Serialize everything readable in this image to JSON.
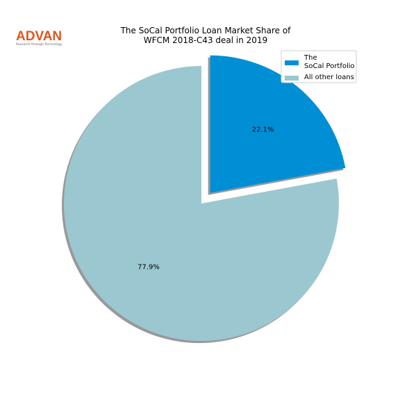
{
  "logo": {
    "name": "ADVAN",
    "tagline": "Research through Technology"
  },
  "chart_data": {
    "type": "pie",
    "title": "The SoCal Portfolio Loan Market Share of\nWFCM 2018-C43 deal in 2019",
    "categories": [
      "The\nSoCal Portfolio",
      "All other loans"
    ],
    "values": [
      22.1,
      77.9
    ],
    "value_labels": [
      "22.1%",
      "77.9%"
    ],
    "colors": [
      "#008fd5",
      "#9bc7d0"
    ],
    "shadow": true,
    "legend": "upper right"
  }
}
